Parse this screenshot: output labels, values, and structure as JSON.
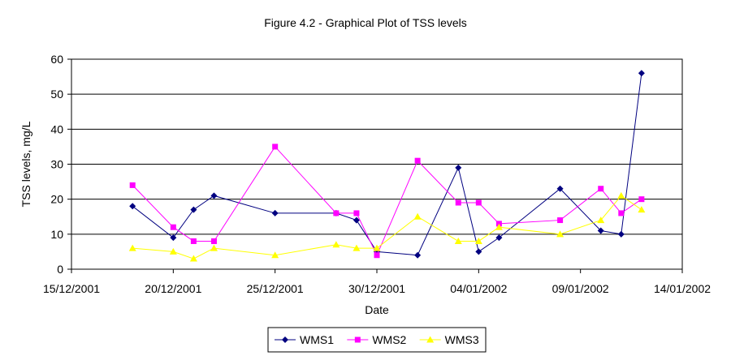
{
  "chart_data": {
    "type": "line",
    "title": "Figure 4.2 - Graphical Plot of TSS levels",
    "xlabel": "Date",
    "ylabel": "TSS levels, mg/L",
    "x_ticks": [
      "15/12/2001",
      "20/12/2001",
      "25/12/2001",
      "30/12/2001",
      "04/01/2002",
      "09/01/2002",
      "14/01/2002"
    ],
    "y_ticks": [
      "0",
      "10",
      "20",
      "30",
      "40",
      "50",
      "60"
    ],
    "xlim": [
      "2001-12-15",
      "2002-01-14"
    ],
    "ylim": [
      0,
      60
    ],
    "grid": "horizontal",
    "legend_position": "bottom",
    "series": [
      {
        "name": "WMS1",
        "color": "#000080",
        "marker": "diamond",
        "points": [
          [
            "2001-12-18",
            18
          ],
          [
            "2001-12-20",
            9
          ],
          [
            "2001-12-21",
            17
          ],
          [
            "2001-12-22",
            21
          ],
          [
            "2001-12-25",
            16
          ],
          [
            "2001-12-28",
            16
          ],
          [
            "2001-12-29",
            14
          ],
          [
            "2001-12-30",
            5
          ],
          [
            "2002-01-01",
            4
          ],
          [
            "2002-01-03",
            29
          ],
          [
            "2002-01-04",
            5
          ],
          [
            "2002-01-05",
            9
          ],
          [
            "2002-01-08",
            23
          ],
          [
            "2002-01-10",
            11
          ],
          [
            "2002-01-11",
            10
          ],
          [
            "2002-01-12",
            56
          ]
        ]
      },
      {
        "name": "WMS2",
        "color": "#FF00FF",
        "marker": "square",
        "points": [
          [
            "2001-12-18",
            24
          ],
          [
            "2001-12-20",
            12
          ],
          [
            "2001-12-21",
            8
          ],
          [
            "2001-12-22",
            8
          ],
          [
            "2001-12-25",
            35
          ],
          [
            "2001-12-28",
            16
          ],
          [
            "2001-12-29",
            16
          ],
          [
            "2001-12-30",
            4
          ],
          [
            "2002-01-01",
            31
          ],
          [
            "2002-01-03",
            19
          ],
          [
            "2002-01-04",
            19
          ],
          [
            "2002-01-05",
            13
          ],
          [
            "2002-01-08",
            14
          ],
          [
            "2002-01-10",
            23
          ],
          [
            "2002-01-11",
            16
          ],
          [
            "2002-01-12",
            20
          ]
        ]
      },
      {
        "name": "WMS3",
        "color": "#FFFF00",
        "marker": "triangle",
        "points": [
          [
            "2001-12-18",
            6
          ],
          [
            "2001-12-20",
            5
          ],
          [
            "2001-12-21",
            3
          ],
          [
            "2001-12-22",
            6
          ],
          [
            "2001-12-25",
            4
          ],
          [
            "2001-12-28",
            7
          ],
          [
            "2001-12-29",
            6
          ],
          [
            "2001-12-30",
            6
          ],
          [
            "2002-01-01",
            15
          ],
          [
            "2002-01-03",
            8
          ],
          [
            "2002-01-04",
            8
          ],
          [
            "2002-01-05",
            12
          ],
          [
            "2002-01-08",
            10
          ],
          [
            "2002-01-10",
            14
          ],
          [
            "2002-01-11",
            21
          ],
          [
            "2002-01-12",
            17
          ]
        ]
      }
    ]
  }
}
